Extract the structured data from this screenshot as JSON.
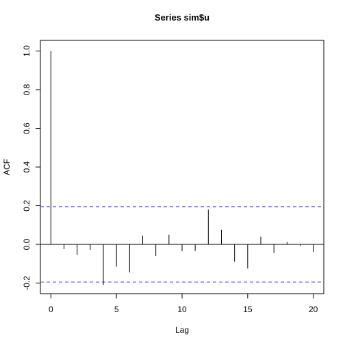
{
  "chart_data": {
    "type": "bar",
    "title": "Series  sim$u",
    "xlabel": "Lag",
    "ylabel": "ACF",
    "xlim": [
      -0.8,
      20.8
    ],
    "ylim": [
      -0.255,
      1.055
    ],
    "x_ticks": [
      0,
      5,
      10,
      15,
      20
    ],
    "y_ticks": [
      -0.2,
      0.0,
      0.2,
      0.4,
      0.6,
      0.8,
      1.0
    ],
    "y_tick_labels": [
      "-0.2",
      "0.0",
      "0.2",
      "0.4",
      "0.6",
      "0.8",
      "1.0"
    ],
    "lags": [
      0,
      1,
      2,
      3,
      4,
      5,
      6,
      7,
      8,
      9,
      10,
      11,
      12,
      13,
      14,
      15,
      16,
      17,
      18,
      19,
      20
    ],
    "values": [
      1.0,
      -0.025,
      -0.055,
      -0.028,
      -0.21,
      -0.115,
      -0.145,
      0.045,
      -0.06,
      0.05,
      -0.035,
      -0.035,
      0.18,
      0.075,
      -0.09,
      -0.125,
      0.04,
      -0.045,
      0.012,
      -0.008,
      -0.04
    ],
    "conf_bounds": [
      0.195,
      -0.195
    ],
    "conf_color": "#5b5bf0",
    "grid": false
  }
}
